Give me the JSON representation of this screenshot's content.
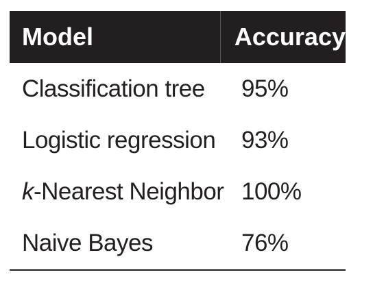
{
  "table": {
    "headers": [
      "Model",
      "Accuracy"
    ],
    "rows": [
      {
        "model_prefix": "",
        "model": "Classification tree",
        "accuracy": "95%"
      },
      {
        "model_prefix": "",
        "model": "Logistic regression",
        "accuracy": "93%"
      },
      {
        "model_prefix": "k",
        "model": "-Nearest Neighbor",
        "accuracy": "100%"
      },
      {
        "model_prefix": "",
        "model": "Naive Bayes",
        "accuracy": "76%"
      }
    ]
  },
  "colors": {
    "header_bg": "#231f20",
    "header_text": "#ffffff",
    "body_text": "#231f20"
  }
}
